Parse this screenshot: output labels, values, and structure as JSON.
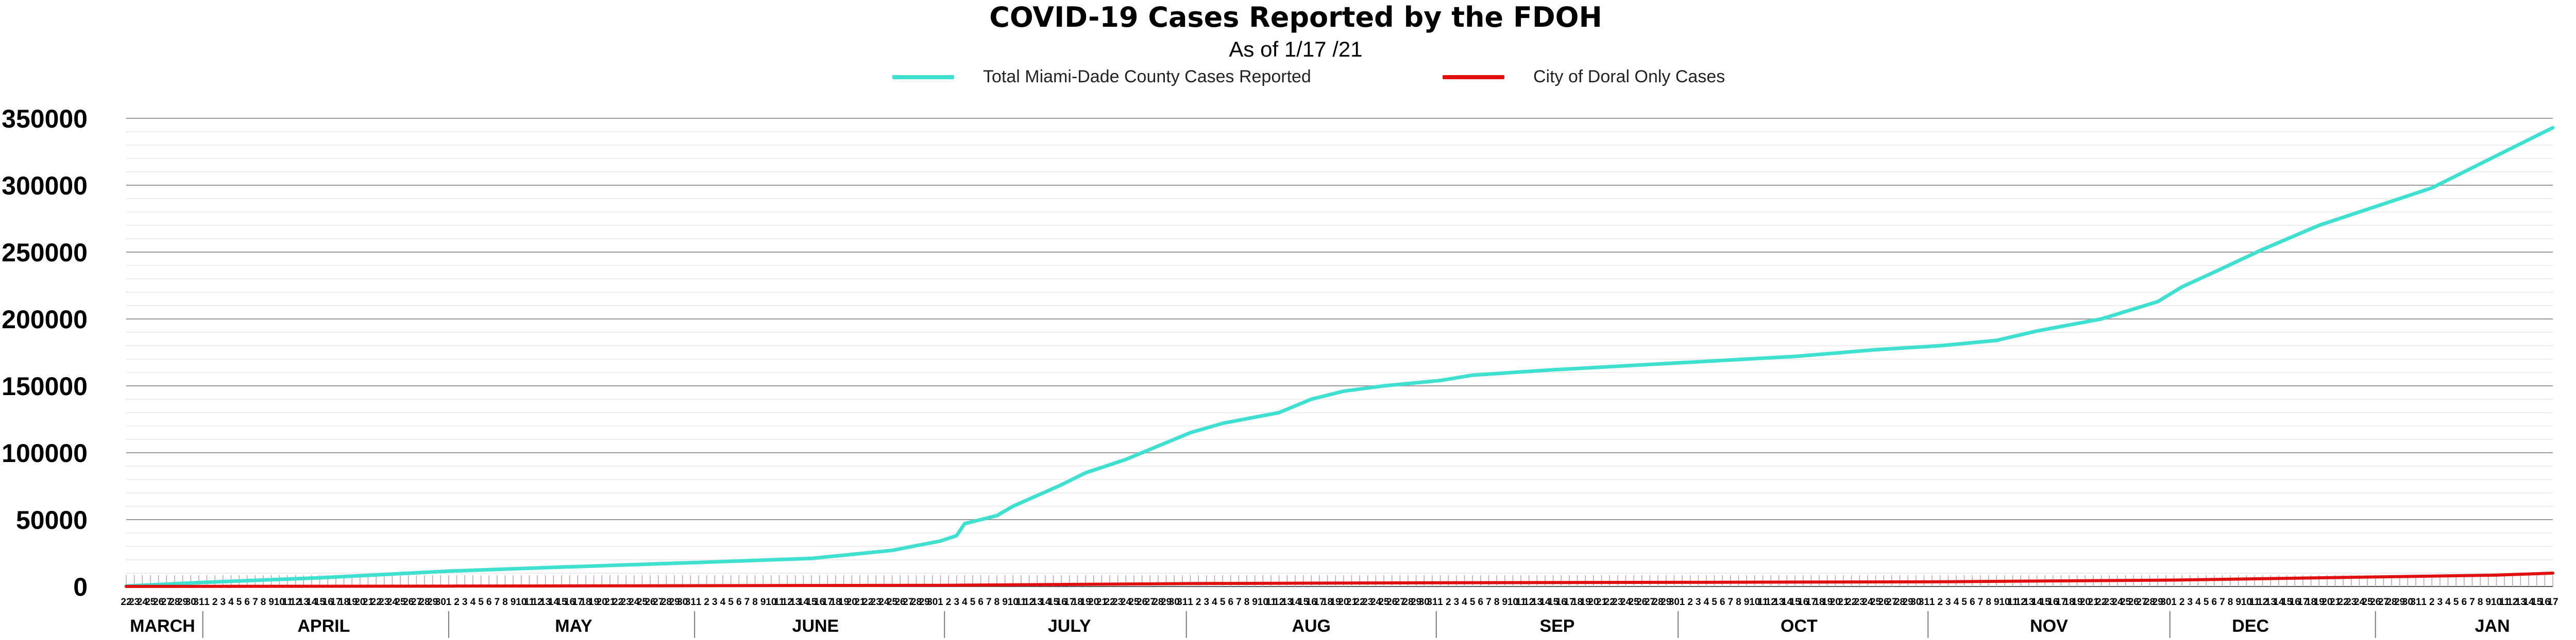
{
  "chart_data": {
    "type": "line",
    "title": "COVID-19 Cases Reported by the FDOH",
    "subtitle": "As of 1/17 /21",
    "xlabel": "",
    "ylabel": "",
    "ylim": [
      0,
      350000
    ],
    "y_ticks": [
      "350000",
      "300000",
      "250000",
      "200000",
      "150000",
      "100000",
      "50000",
      "0"
    ],
    "grid": true,
    "legend_position": "top-center",
    "x_range": [
      "2020-03-22",
      "2021-01-17"
    ],
    "months": [
      {
        "label": "MARCH",
        "start": "2020-03-22",
        "end": "2020-03-31"
      },
      {
        "label": "APRIL",
        "start": "2020-04-01",
        "end": "2020-04-30"
      },
      {
        "label": "MAY",
        "start": "2020-05-02",
        "end": "2020-05-31"
      },
      {
        "label": "JUNE",
        "start": "2020-06-01",
        "end": "2020-06-30"
      },
      {
        "label": "JULY",
        "start": "2020-07-03",
        "end": "2020-07-31"
      },
      {
        "label": "AUG",
        "start": "2020-08-01",
        "end": "2020-08-31"
      },
      {
        "label": "SEP",
        "start": "2020-09-01",
        "end": "2020-09-30"
      },
      {
        "label": "OCT",
        "start": "2020-10-01",
        "end": "2020-10-30"
      },
      {
        "label": "NOV",
        "start": "2020-11-02",
        "end": "2020-11-29"
      },
      {
        "label": "DEC",
        "start": "2020-12-02",
        "end": "2020-12-19"
      },
      {
        "label": "JAN",
        "start": "2021-01-02",
        "end": "2021-01-17"
      }
    ],
    "series": [
      {
        "name": "Total Miami-Dade County Cases Reported",
        "color": "#40e0d0",
        "points": [
          [
            "2020-03-22",
            300
          ],
          [
            "2020-04-01",
            3200
          ],
          [
            "2020-04-15",
            6500
          ],
          [
            "2020-05-01",
            11500
          ],
          [
            "2020-05-15",
            14500
          ],
          [
            "2020-06-01",
            18000
          ],
          [
            "2020-06-15",
            21000
          ],
          [
            "2020-06-25",
            27000
          ],
          [
            "2020-07-01",
            34000
          ],
          [
            "2020-07-03",
            38000
          ],
          [
            "2020-07-04",
            47000
          ],
          [
            "2020-07-08",
            53000
          ],
          [
            "2020-07-10",
            60000
          ],
          [
            "2020-07-13",
            68000
          ],
          [
            "2020-07-16",
            76000
          ],
          [
            "2020-07-19",
            85000
          ],
          [
            "2020-07-24",
            95000
          ],
          [
            "2020-08-01",
            115000
          ],
          [
            "2020-08-05",
            122000
          ],
          [
            "2020-08-12",
            130000
          ],
          [
            "2020-08-16",
            140000
          ],
          [
            "2020-08-20",
            146000
          ],
          [
            "2020-08-25",
            150000
          ],
          [
            "2020-09-01",
            154000
          ],
          [
            "2020-09-05",
            158000
          ],
          [
            "2020-09-15",
            162000
          ],
          [
            "2020-09-30",
            167000
          ],
          [
            "2020-10-15",
            172000
          ],
          [
            "2020-10-25",
            177000
          ],
          [
            "2020-11-02",
            180000
          ],
          [
            "2020-11-09",
            184000
          ],
          [
            "2020-11-14",
            191000
          ],
          [
            "2020-11-22",
            200000
          ],
          [
            "2020-11-29",
            213000
          ],
          [
            "2020-12-02",
            224000
          ],
          [
            "2020-12-06",
            235000
          ],
          [
            "2020-12-12",
            252000
          ],
          [
            "2020-12-19",
            270000
          ],
          [
            "2021-01-02",
            298000
          ],
          [
            "2021-01-10",
            322000
          ],
          [
            "2021-01-17",
            343000
          ]
        ]
      },
      {
        "name": "City of Doral Only Cases",
        "color": "#e01010",
        "points": [
          [
            "2020-03-22",
            20
          ],
          [
            "2020-05-01",
            300
          ],
          [
            "2020-07-01",
            900
          ],
          [
            "2020-08-01",
            2200
          ],
          [
            "2020-09-01",
            2800
          ],
          [
            "2020-10-01",
            3100
          ],
          [
            "2020-11-01",
            3500
          ],
          [
            "2020-12-01",
            4800
          ],
          [
            "2020-12-19",
            6500
          ],
          [
            "2021-01-10",
            8500
          ],
          [
            "2021-01-17",
            10000
          ]
        ]
      }
    ]
  }
}
